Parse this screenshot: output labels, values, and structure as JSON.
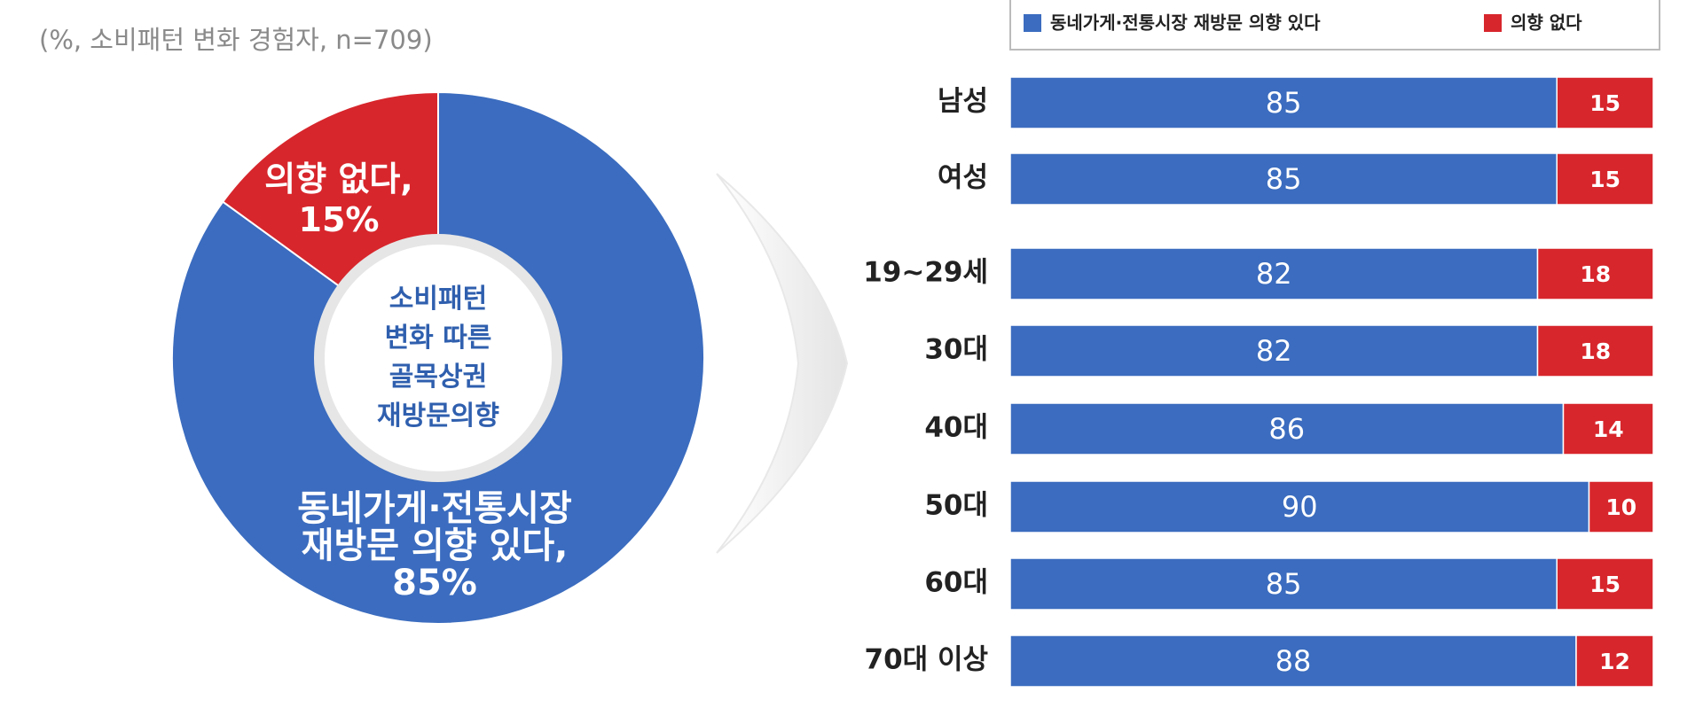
{
  "chart_data": [
    {
      "type": "pie",
      "subtitle": "(%, 소비패턴 변화 경험자, n=709)",
      "center_text": "소비패턴 변화 따른 골목상권 재방문의향",
      "values": [
        85,
        15
      ],
      "value_labels": [
        "동네가게·전통시장 재방문 의향 있다, 85%",
        "의향 없다, 15%"
      ],
      "colors": [
        "#3b6cbf",
        "#d7262c"
      ]
    },
    {
      "type": "stacked-bar-horizontal",
      "categories": [
        "남성",
        "여성",
        "19~29세",
        "30대",
        "40대",
        "50대",
        "60대",
        "70대 이상"
      ],
      "series": [
        {
          "name": "동네가게·전통시장 재방문 의향 있다",
          "color": "#3b6cbf",
          "values": [
            85,
            85,
            82,
            82,
            86,
            90,
            85,
            88
          ]
        },
        {
          "name": "의향 없다",
          "color": "#d7262c",
          "values": [
            15,
            15,
            18,
            18,
            14,
            10,
            15,
            12
          ]
        }
      ],
      "xlim": [
        0,
        100
      ]
    }
  ]
}
